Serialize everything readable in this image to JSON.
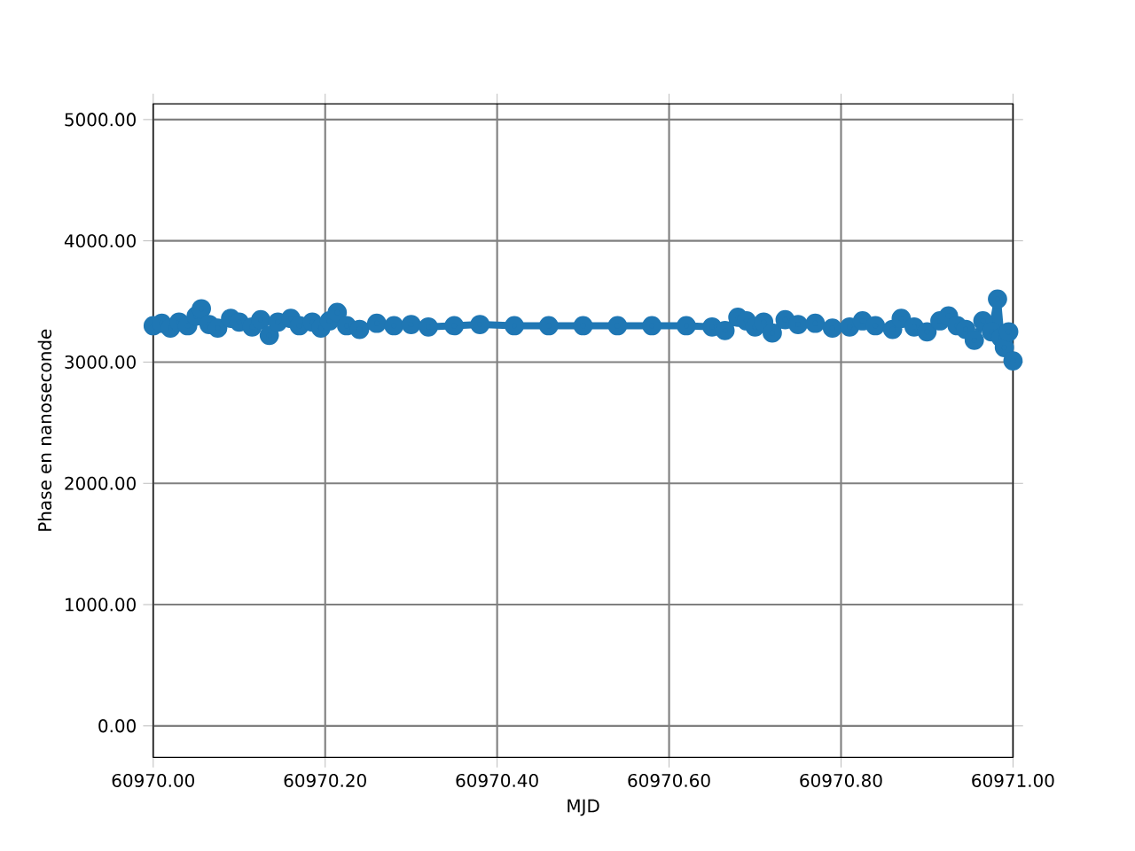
{
  "chart_data": {
    "type": "line",
    "xlabel": "MJD",
    "ylabel": "Phase en nanoseconde",
    "marker": "circle",
    "grid": true,
    "xlim": [
      60970.0,
      60971.0
    ],
    "ylim": [
      -260,
      5130
    ],
    "xticks": [
      {
        "value": 60970.0,
        "label": "60970.00"
      },
      {
        "value": 60970.2,
        "label": "60970.20"
      },
      {
        "value": 60970.4,
        "label": "60970.40"
      },
      {
        "value": 60970.6,
        "label": "60970.60"
      },
      {
        "value": 60970.8,
        "label": "60970.80"
      },
      {
        "value": 60971.0,
        "label": "60971.00"
      }
    ],
    "yticks": [
      {
        "value": 0,
        "label": "0.00"
      },
      {
        "value": 1000,
        "label": "1000.00"
      },
      {
        "value": 2000,
        "label": "2000.00"
      },
      {
        "value": 3000,
        "label": "3000.00"
      },
      {
        "value": 4000,
        "label": "4000.00"
      },
      {
        "value": 5000,
        "label": "5000.00"
      }
    ],
    "series": [
      {
        "color": "#1f77b4",
        "x": [
          60970.0,
          60970.01,
          60970.02,
          60970.03,
          60970.04,
          60970.05,
          60970.056,
          60970.065,
          60970.075,
          60970.09,
          60970.1,
          60970.115,
          60970.125,
          60970.135,
          60970.145,
          60970.16,
          60970.17,
          60970.185,
          60970.195,
          60970.205,
          60970.214,
          60970.225,
          60970.24,
          60970.26,
          60970.28,
          60970.3,
          60970.32,
          60970.35,
          60970.38,
          60970.42,
          60970.46,
          60970.5,
          60970.54,
          60970.58,
          60970.62,
          60970.65,
          60970.665,
          60970.68,
          60970.69,
          60970.7,
          60970.71,
          60970.72,
          60970.735,
          60970.75,
          60970.77,
          60970.79,
          60970.81,
          60970.825,
          60970.84,
          60970.86,
          60970.87,
          60970.885,
          60970.9,
          60970.915,
          60970.925,
          60970.935,
          60970.945,
          60970.955,
          60970.965,
          60970.975,
          60970.982,
          60970.986,
          60970.99,
          60970.995,
          60971.0
        ],
        "values": [
          3300,
          3320,
          3280,
          3330,
          3300,
          3380,
          3440,
          3310,
          3280,
          3360,
          3330,
          3290,
          3350,
          3220,
          3330,
          3360,
          3300,
          3330,
          3280,
          3340,
          3410,
          3300,
          3270,
          3320,
          3300,
          3310,
          3290,
          3300,
          3310,
          3300,
          3300,
          3300,
          3300,
          3300,
          3300,
          3290,
          3260,
          3370,
          3340,
          3290,
          3330,
          3240,
          3350,
          3310,
          3320,
          3280,
          3290,
          3340,
          3300,
          3270,
          3360,
          3290,
          3250,
          3340,
          3380,
          3300,
          3270,
          3180,
          3340,
          3250,
          3520,
          3200,
          3120,
          3250,
          3010
        ]
      }
    ]
  }
}
